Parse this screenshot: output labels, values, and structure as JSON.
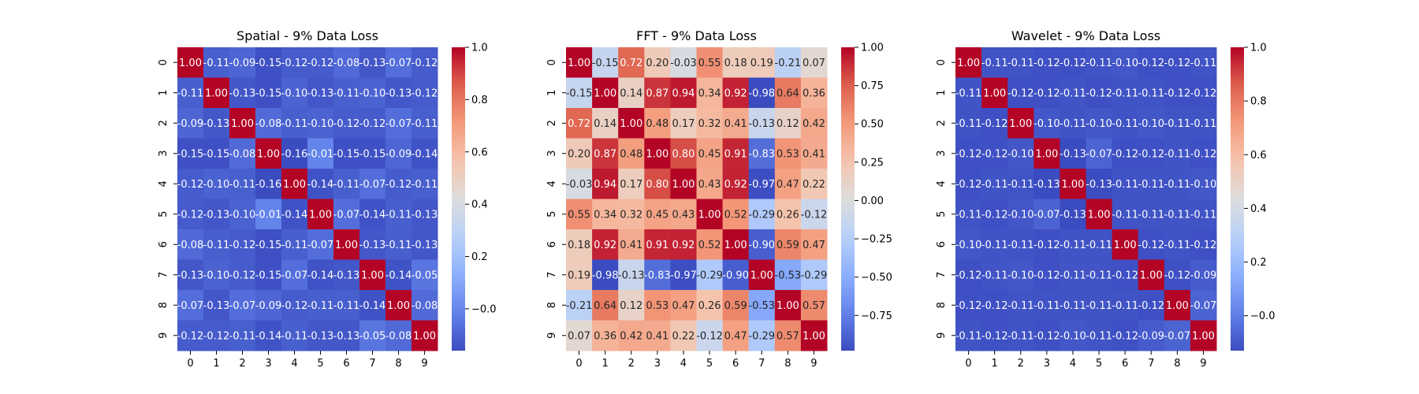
{
  "chart_data": [
    {
      "type": "heatmap",
      "title": "Spatial - 9% Data Loss",
      "x": [
        "0",
        "1",
        "2",
        "3",
        "4",
        "5",
        "6",
        "7",
        "8",
        "9"
      ],
      "y": [
        "0",
        "1",
        "2",
        "3",
        "4",
        "5",
        "6",
        "7",
        "8",
        "9"
      ],
      "matrix": [
        [
          1.0,
          -0.11,
          -0.09,
          -0.15,
          -0.12,
          -0.12,
          -0.08,
          -0.13,
          -0.07,
          -0.12
        ],
        [
          -0.11,
          1.0,
          -0.13,
          -0.15,
          -0.1,
          -0.13,
          -0.11,
          -0.1,
          -0.13,
          -0.12
        ],
        [
          -0.09,
          -0.13,
          1.0,
          -0.08,
          -0.11,
          -0.1,
          -0.12,
          -0.12,
          -0.07,
          -0.11
        ],
        [
          -0.15,
          -0.15,
          -0.08,
          1.0,
          -0.16,
          -0.01,
          -0.15,
          -0.15,
          -0.09,
          -0.14
        ],
        [
          -0.12,
          -0.1,
          -0.11,
          -0.16,
          1.0,
          -0.14,
          -0.11,
          -0.07,
          -0.12,
          -0.11
        ],
        [
          -0.12,
          -0.13,
          -0.1,
          -0.01,
          -0.14,
          1.0,
          -0.07,
          -0.14,
          -0.11,
          -0.13
        ],
        [
          -0.08,
          -0.11,
          -0.12,
          -0.15,
          -0.11,
          -0.07,
          1.0,
          -0.13,
          -0.11,
          -0.13
        ],
        [
          -0.13,
          -0.1,
          -0.12,
          -0.15,
          -0.07,
          -0.14,
          -0.13,
          1.0,
          -0.14,
          -0.05
        ],
        [
          -0.07,
          -0.13,
          -0.07,
          -0.09,
          -0.12,
          -0.11,
          -0.11,
          -0.14,
          1.0,
          -0.08
        ],
        [
          -0.12,
          -0.12,
          -0.11,
          -0.14,
          -0.11,
          -0.13,
          -0.13,
          -0.05,
          -0.08,
          1.0
        ]
      ],
      "vmin": -0.16,
      "vmax": 1.0,
      "colorbar_ticks": [
        -0.0,
        0.2,
        0.4,
        0.6,
        0.8,
        1.0
      ],
      "colorbar_labels": [
        "−0.0",
        "0.2",
        "0.4",
        "0.6",
        "0.8",
        "1.0"
      ],
      "colormap": "coolwarm"
    },
    {
      "type": "heatmap",
      "title": "FFT - 9% Data Loss",
      "x": [
        "0",
        "1",
        "2",
        "3",
        "4",
        "5",
        "6",
        "7",
        "8",
        "9"
      ],
      "y": [
        "0",
        "1",
        "2",
        "3",
        "4",
        "5",
        "6",
        "7",
        "8",
        "9"
      ],
      "matrix": [
        [
          1.0,
          -0.15,
          0.72,
          0.2,
          -0.03,
          0.55,
          0.18,
          0.19,
          -0.21,
          0.07
        ],
        [
          -0.15,
          1.0,
          0.14,
          0.87,
          0.94,
          0.34,
          0.92,
          -0.98,
          0.64,
          0.36
        ],
        [
          0.72,
          0.14,
          1.0,
          0.48,
          0.17,
          0.32,
          0.41,
          -0.13,
          0.12,
          0.42
        ],
        [
          0.2,
          0.87,
          0.48,
          1.0,
          0.8,
          0.45,
          0.91,
          -0.83,
          0.53,
          0.41
        ],
        [
          -0.03,
          0.94,
          0.17,
          0.8,
          1.0,
          0.43,
          0.92,
          -0.97,
          0.47,
          0.22
        ],
        [
          0.55,
          0.34,
          0.32,
          0.45,
          0.43,
          1.0,
          0.52,
          -0.29,
          0.26,
          -0.12
        ],
        [
          0.18,
          0.92,
          0.41,
          0.91,
          0.92,
          0.52,
          1.0,
          -0.9,
          0.59,
          0.47
        ],
        [
          0.19,
          -0.98,
          -0.13,
          -0.83,
          -0.97,
          -0.29,
          -0.9,
          1.0,
          -0.53,
          -0.29
        ],
        [
          -0.21,
          0.64,
          0.12,
          0.53,
          0.47,
          0.26,
          0.59,
          -0.53,
          1.0,
          0.57
        ],
        [
          0.07,
          0.36,
          0.42,
          0.41,
          0.22,
          -0.12,
          0.47,
          -0.29,
          0.57,
          1.0
        ]
      ],
      "vmin": -0.98,
      "vmax": 1.0,
      "colorbar_ticks": [
        -0.75,
        -0.5,
        -0.25,
        0.0,
        0.25,
        0.5,
        0.75,
        1.0
      ],
      "colorbar_labels": [
        "−0.75",
        "−0.50",
        "−0.25",
        "0.00",
        "0.25",
        "0.50",
        "0.75",
        "1.00"
      ],
      "colormap": "coolwarm"
    },
    {
      "type": "heatmap",
      "title": "Wavelet - 9% Data Loss",
      "x": [
        "0",
        "1",
        "2",
        "3",
        "4",
        "5",
        "6",
        "7",
        "8",
        "9"
      ],
      "y": [
        "0",
        "1",
        "2",
        "3",
        "4",
        "5",
        "6",
        "7",
        "8",
        "9"
      ],
      "matrix": [
        [
          1.0,
          -0.11,
          -0.11,
          -0.12,
          -0.12,
          -0.11,
          -0.1,
          -0.12,
          -0.12,
          -0.11
        ],
        [
          -0.11,
          1.0,
          -0.12,
          -0.12,
          -0.11,
          -0.12,
          -0.11,
          -0.11,
          -0.12,
          -0.12
        ],
        [
          -0.11,
          -0.12,
          1.0,
          -0.1,
          -0.11,
          -0.1,
          -0.11,
          -0.1,
          -0.11,
          -0.11
        ],
        [
          -0.12,
          -0.12,
          -0.1,
          1.0,
          -0.13,
          -0.07,
          -0.12,
          -0.12,
          -0.11,
          -0.12
        ],
        [
          -0.12,
          -0.11,
          -0.11,
          -0.13,
          1.0,
          -0.13,
          -0.11,
          -0.11,
          -0.11,
          -0.1
        ],
        [
          -0.11,
          -0.12,
          -0.1,
          -0.07,
          -0.13,
          1.0,
          -0.11,
          -0.11,
          -0.11,
          -0.11
        ],
        [
          -0.1,
          -0.11,
          -0.11,
          -0.12,
          -0.11,
          -0.11,
          1.0,
          -0.12,
          -0.11,
          -0.12
        ],
        [
          -0.12,
          -0.11,
          -0.1,
          -0.12,
          -0.11,
          -0.11,
          -0.12,
          1.0,
          -0.12,
          -0.09
        ],
        [
          -0.12,
          -0.12,
          -0.11,
          -0.11,
          -0.11,
          -0.11,
          -0.11,
          -0.12,
          1.0,
          -0.07
        ],
        [
          -0.11,
          -0.12,
          -0.11,
          -0.12,
          -0.1,
          -0.11,
          -0.12,
          -0.09,
          -0.07,
          1.0
        ]
      ],
      "vmin": -0.13,
      "vmax": 1.0,
      "colorbar_ticks": [
        -0.0,
        0.2,
        0.4,
        0.6,
        0.8,
        1.0
      ],
      "colorbar_labels": [
        "−0.0",
        "0.2",
        "0.4",
        "0.6",
        "0.8",
        "1.0"
      ],
      "colormap": "coolwarm"
    }
  ]
}
